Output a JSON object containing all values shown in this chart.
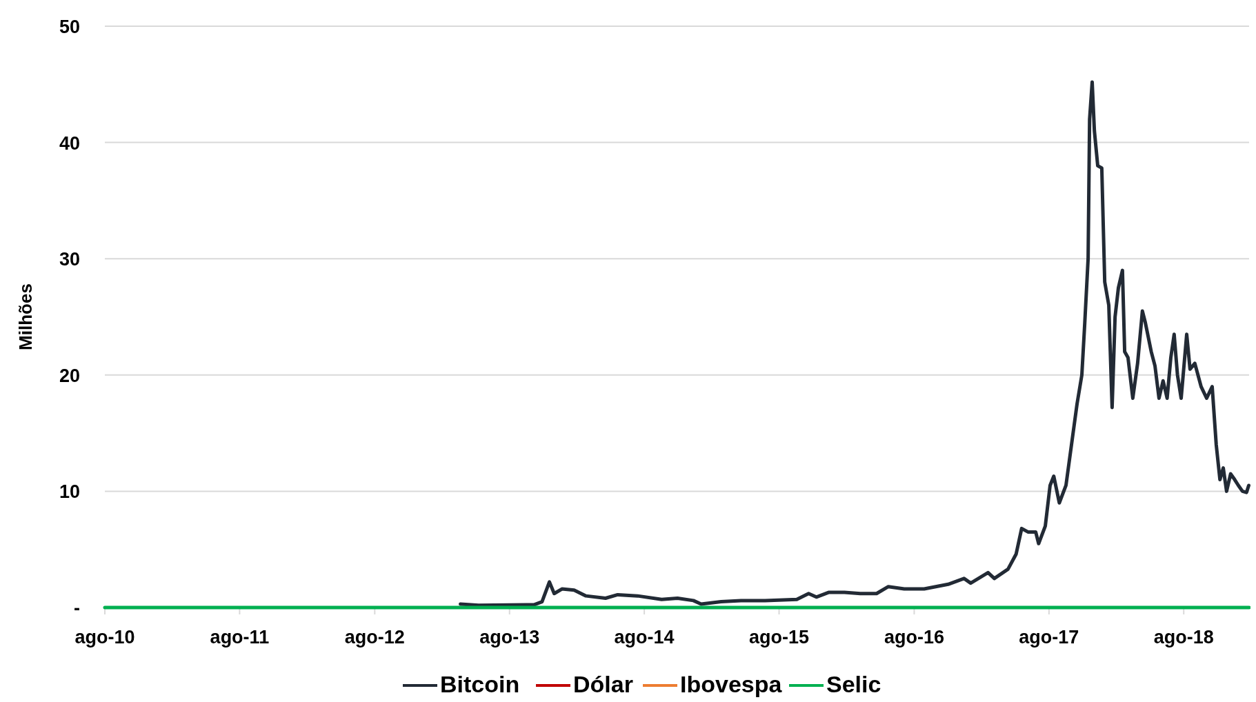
{
  "chart_data": {
    "type": "line",
    "ylabel": "Milhões",
    "xlim": [
      "2010-08-01",
      "2019-01-25"
    ],
    "xticks": [
      {
        "value": "2010-08-01",
        "label": "ago-10"
      },
      {
        "value": "2011-08-01",
        "label": "ago-11"
      },
      {
        "value": "2012-08-01",
        "label": "ago-12"
      },
      {
        "value": "2013-08-01",
        "label": "ago-13"
      },
      {
        "value": "2014-08-01",
        "label": "ago-14"
      },
      {
        "value": "2015-08-01",
        "label": "ago-15"
      },
      {
        "value": "2016-08-01",
        "label": "ago-16"
      },
      {
        "value": "2017-08-01",
        "label": "ago-17"
      },
      {
        "value": "2018-08-01",
        "label": "ago-18"
      }
    ],
    "ylim": [
      0,
      50
    ],
    "yticks": [
      {
        "value": 0,
        "label": "-"
      },
      10,
      20,
      30,
      40,
      50
    ],
    "grid": "y",
    "legend": "bottom",
    "series": [
      {
        "name": "Bitcoin",
        "color": "#222a35",
        "x": [
          "2013-03-21",
          "2013-05-09",
          "2013-10-07",
          "2013-10-28",
          "2013-11-17",
          "2013-11-30",
          "2013-12-21",
          "2014-01-23",
          "2014-02-24",
          "2014-04-18",
          "2014-05-21",
          "2014-07-14",
          "2014-09-17",
          "2014-10-30",
          "2014-12-12",
          "2015-01-02",
          "2015-02-25",
          "2015-04-20",
          "2015-06-24",
          "2015-09-18",
          "2015-10-20",
          "2015-11-10",
          "2015-12-13",
          "2016-01-25",
          "2016-03-08",
          "2016-04-21",
          "2016-05-23",
          "2016-07-05",
          "2016-08-28",
          "2016-11-01",
          "2016-12-14",
          "2017-01-01",
          "2017-02-17",
          "2017-03-06",
          "2017-04-12",
          "2017-05-04",
          "2017-05-19",
          "2017-06-05",
          "2017-06-26",
          "2017-07-04",
          "2017-07-22",
          "2017-08-04",
          "2017-08-14",
          "2017-08-29",
          "2017-09-16",
          "2017-10-01",
          "2017-10-16",
          "2017-10-29",
          "2017-11-06",
          "2017-11-15",
          "2017-11-19",
          "2017-11-26",
          "2017-12-02",
          "2017-12-11",
          "2017-12-22",
          "2017-12-30",
          "2018-01-10",
          "2018-01-19",
          "2018-01-27",
          "2018-02-05",
          "2018-02-16",
          "2018-02-22",
          "2018-03-03",
          "2018-03-16",
          "2018-03-29",
          "2018-04-11",
          "2018-04-19",
          "2018-05-05",
          "2018-05-15",
          "2018-05-26",
          "2018-06-06",
          "2018-06-17",
          "2018-06-27",
          "2018-07-06",
          "2018-07-15",
          "2018-07-25",
          "2018-08-09",
          "2018-08-18",
          "2018-08-31",
          "2018-09-17",
          "2018-10-02",
          "2018-10-17",
          "2018-10-28",
          "2018-11-07",
          "2018-11-16",
          "2018-11-25",
          "2018-12-06",
          "2018-12-17",
          "2018-12-27",
          "2019-01-07",
          "2019-01-18",
          "2019-01-24"
        ],
        "values": [
          0.3,
          0.2,
          0.25,
          0.5,
          2.2,
          1.2,
          1.6,
          1.5,
          1.0,
          0.8,
          1.1,
          1.0,
          0.7,
          0.8,
          0.6,
          0.3,
          0.5,
          0.6,
          0.6,
          0.7,
          1.2,
          0.9,
          1.3,
          1.3,
          1.2,
          1.2,
          1.8,
          1.6,
          1.6,
          2.0,
          2.5,
          2.1,
          3.0,
          2.5,
          3.3,
          4.6,
          6.8,
          6.5,
          6.5,
          5.5,
          7.0,
          10.5,
          11.3,
          9.0,
          10.5,
          14.0,
          17.5,
          20,
          24.5,
          30,
          42,
          45.2,
          41,
          38,
          37.8,
          28,
          26,
          17.2,
          25,
          27.5,
          29,
          22,
          21.5,
          18,
          21,
          25.5,
          24.5,
          22,
          20.8,
          18,
          19.5,
          18,
          21.5,
          23.5,
          20,
          18,
          23.5,
          20.5,
          21,
          19,
          18,
          19,
          14,
          11,
          12,
          10,
          11.5,
          11,
          10.5,
          10,
          9.9,
          10.5
        ]
      },
      {
        "name": "Dólar",
        "color": "#c00000"
      },
      {
        "name": "Ibovespa",
        "color": "#ed7d31"
      },
      {
        "name": "Selic",
        "color": "#00b050",
        "x": [
          "2010-08-01",
          "2019-01-25"
        ],
        "values": [
          0,
          0
        ]
      }
    ]
  }
}
